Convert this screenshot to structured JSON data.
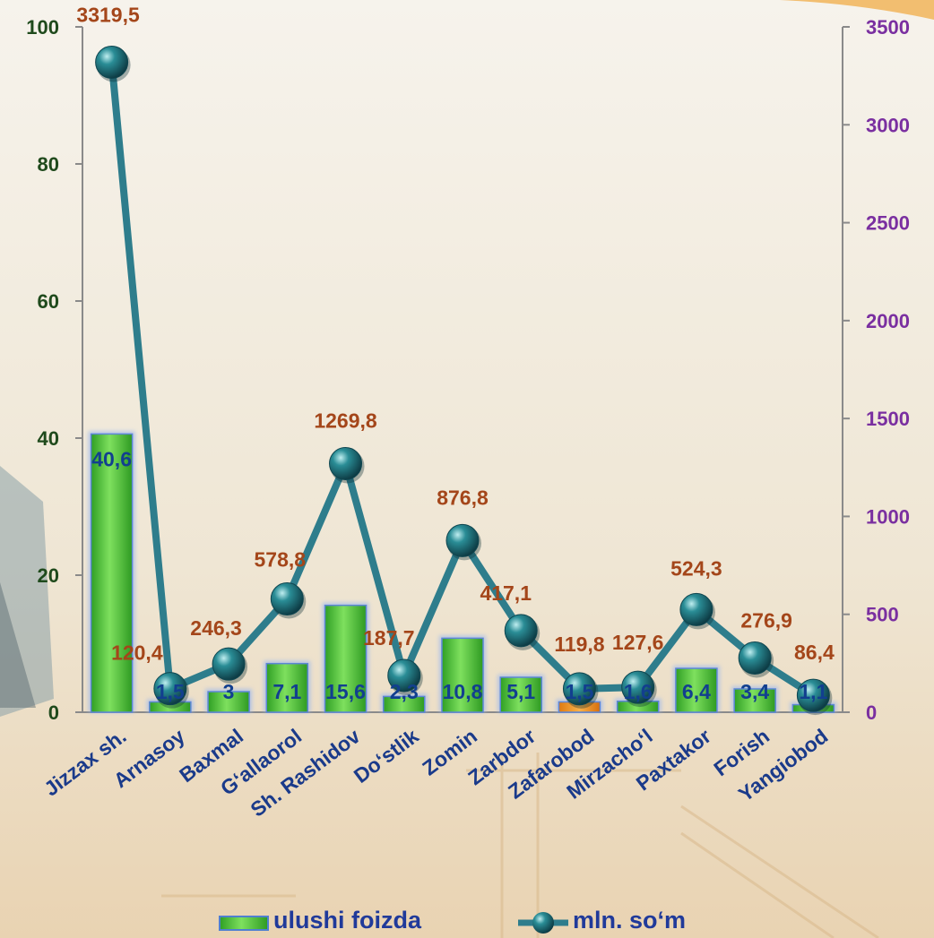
{
  "chart_data": {
    "type": "bar+line",
    "categories": [
      "Jizzax  sh.",
      "Arnasoy",
      "Baxmal",
      "G‘allaorol",
      "Sh. Rashidov",
      "Do‘stlik",
      "Zomin",
      "Zarbdor",
      "Zafarobod",
      "Mirzacho‘l",
      "Paxtakor",
      "Forish",
      "Yangiobod"
    ],
    "series": [
      {
        "name": "ulushi foizda",
        "kind": "bar",
        "axis": "left",
        "values": [
          40.6,
          1.5,
          3,
          7.1,
          15.6,
          2.3,
          10.8,
          5.1,
          1.5,
          1.6,
          6.4,
          3.4,
          1.1
        ],
        "labels": [
          "40,6",
          "1,5",
          "3",
          "7,1",
          "15,6",
          "2,3",
          "10,8",
          "5,1",
          "1,5",
          "1,6",
          "6,4",
          "3,4",
          "1,1"
        ],
        "color": "#3fbf2e"
      },
      {
        "name": "mln. so‘m",
        "kind": "line",
        "axis": "right",
        "values": [
          3319.5,
          120.4,
          246.3,
          578.8,
          1269.8,
          187.7,
          876.8,
          417.1,
          119.8,
          127.6,
          524.3,
          276.9,
          86.4
        ],
        "labels": [
          "3319,5",
          "120,4",
          "246,3",
          "578,8",
          "1269,8",
          "187,7",
          "876,8",
          "417,1",
          "119,8",
          "127,6",
          "524,3",
          "276,9",
          "86,4"
        ],
        "color": "#2e7d8c"
      }
    ],
    "y_left": {
      "min": 0,
      "max": 100,
      "ticks": [
        "0",
        "20",
        "40",
        "60",
        "80",
        "100"
      ]
    },
    "y_right": {
      "min": 0,
      "max": 3500,
      "ticks": [
        "0",
        "500",
        "1000",
        "1500",
        "2000",
        "2500",
        "3000",
        "3500"
      ]
    },
    "legend": {
      "placement": "bottom-center",
      "items": [
        "ulushi foizda",
        "mln. so‘m"
      ]
    },
    "colors": {
      "bar": "#3fbf2e",
      "line": "#2e7d8c",
      "bar_label": "#123f8f",
      "line_label": "#a4461a",
      "left_ticks": "#1f4a1c",
      "right_ticks": "#7a2fa0"
    }
  }
}
